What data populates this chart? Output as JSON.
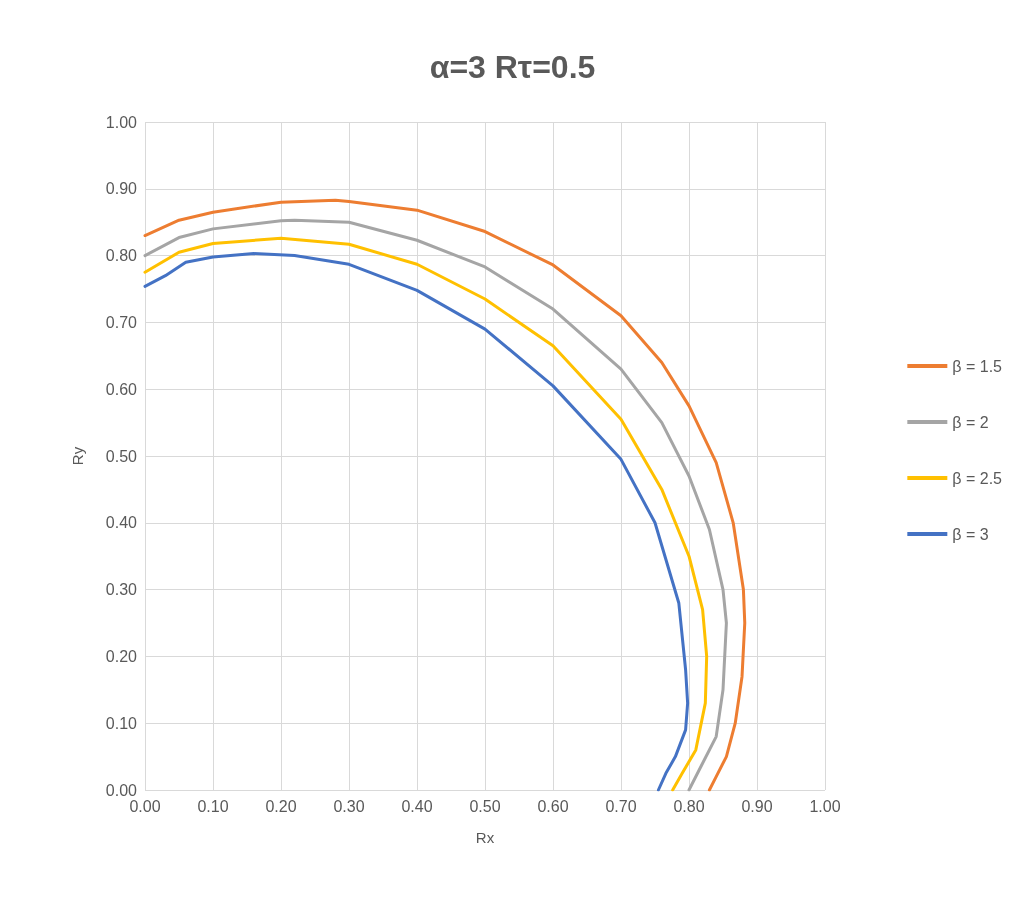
{
  "chart_data": {
    "type": "line",
    "title": "α=3 Rτ=0.5",
    "xlabel": "Rx",
    "ylabel": "Ry",
    "grid": true,
    "legend": "right",
    "marker": "none",
    "xlim": [
      0,
      1
    ],
    "ylim": [
      0,
      1
    ],
    "xticks": [
      {
        "value": 0,
        "label": "0.00"
      },
      {
        "value": 0.1,
        "label": "0.10"
      },
      {
        "value": 0.2,
        "label": "0.20"
      },
      {
        "value": 0.3,
        "label": "0.30"
      },
      {
        "value": 0.4,
        "label": "0.40"
      },
      {
        "value": 0.5,
        "label": "0.50"
      },
      {
        "value": 0.6,
        "label": "0.60"
      },
      {
        "value": 0.7,
        "label": "0.70"
      },
      {
        "value": 0.8,
        "label": "0.80"
      },
      {
        "value": 0.9,
        "label": "0.90"
      },
      {
        "value": 1,
        "label": "1.00"
      }
    ],
    "yticks": [
      {
        "value": 0,
        "label": "0.00"
      },
      {
        "value": 0.1,
        "label": "0.10"
      },
      {
        "value": 0.2,
        "label": "0.20"
      },
      {
        "value": 0.3,
        "label": "0.30"
      },
      {
        "value": 0.4,
        "label": "0.40"
      },
      {
        "value": 0.5,
        "label": "0.50"
      },
      {
        "value": 0.6,
        "label": "0.60"
      },
      {
        "value": 0.7,
        "label": "0.70"
      },
      {
        "value": 0.8,
        "label": "0.80"
      },
      {
        "value": 0.9,
        "label": "0.90"
      },
      {
        "value": 1,
        "label": "1.00"
      }
    ],
    "series": [
      {
        "name": "β = 1.5",
        "color": "#ed7d31",
        "x": [
          0,
          0.05,
          0.1,
          0.2,
          0.28,
          0.3,
          0.4,
          0.5,
          0.6,
          0.7,
          0.76,
          0.8,
          0.84,
          0.865,
          0.88,
          0.882,
          0.878,
          0.868,
          0.855,
          0.84,
          0.83
        ],
        "values": [
          0.83,
          0.853,
          0.865,
          0.88,
          0.883,
          0.881,
          0.868,
          0.836,
          0.786,
          0.71,
          0.64,
          0.575,
          0.49,
          0.4,
          0.3,
          0.25,
          0.17,
          0.1,
          0.05,
          0.02,
          0
        ]
      },
      {
        "name": "β = 2",
        "color": "#a5a5a5",
        "x": [
          0,
          0.05,
          0.1,
          0.2,
          0.22,
          0.3,
          0.4,
          0.5,
          0.6,
          0.7,
          0.76,
          0.8,
          0.83,
          0.85,
          0.855,
          0.85,
          0.84,
          0.82,
          0.8
        ],
        "values": [
          0.8,
          0.827,
          0.84,
          0.852,
          0.853,
          0.85,
          0.823,
          0.783,
          0.72,
          0.63,
          0.55,
          0.47,
          0.39,
          0.3,
          0.25,
          0.15,
          0.08,
          0.04,
          0
        ]
      },
      {
        "name": "β = 2.5",
        "color": "#ffc000",
        "x": [
          0,
          0.05,
          0.1,
          0.2,
          0.3,
          0.4,
          0.5,
          0.6,
          0.7,
          0.76,
          0.8,
          0.82,
          0.826,
          0.824,
          0.81,
          0.79,
          0.776
        ],
        "values": [
          0.775,
          0.805,
          0.818,
          0.826,
          0.817,
          0.787,
          0.735,
          0.665,
          0.555,
          0.45,
          0.35,
          0.27,
          0.2,
          0.13,
          0.06,
          0.025,
          0
        ]
      },
      {
        "name": "β = 3",
        "color": "#4472c4",
        "x": [
          0,
          0.03,
          0.06,
          0.1,
          0.16,
          0.22,
          0.3,
          0.4,
          0.5,
          0.6,
          0.7,
          0.75,
          0.785,
          0.795,
          0.798,
          0.795,
          0.78,
          0.766,
          0.755
        ],
        "values": [
          0.754,
          0.77,
          0.79,
          0.798,
          0.803,
          0.8,
          0.787,
          0.748,
          0.69,
          0.605,
          0.495,
          0.4,
          0.28,
          0.18,
          0.13,
          0.09,
          0.05,
          0.025,
          0
        ]
      }
    ]
  }
}
